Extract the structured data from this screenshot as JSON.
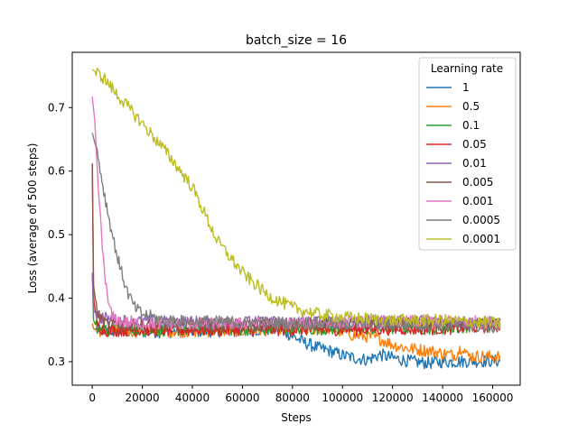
{
  "chart_data": {
    "type": "line",
    "title": "batch_size = 16",
    "xlabel": "Steps",
    "ylabel": "Loss (average of 500 steps)",
    "xlim": [
      -8000,
      171000
    ],
    "ylim": [
      0.263,
      0.787
    ],
    "xticks": [
      0,
      20000,
      40000,
      60000,
      80000,
      100000,
      120000,
      140000,
      160000
    ],
    "yticks": [
      0.3,
      0.4,
      0.5,
      0.6,
      0.7
    ],
    "xtick_labels": [
      "0",
      "20000",
      "40000",
      "60000",
      "80000",
      "100000",
      "120000",
      "140000",
      "160000"
    ],
    "ytick_labels": [
      "0.3",
      "0.4",
      "0.5",
      "0.6",
      "0.7"
    ],
    "grid": false,
    "legend": {
      "title": "Learning rate",
      "placement": "top-right"
    },
    "series": [
      {
        "name": "1",
        "color": "#1f77b4",
        "points": [
          [
            0,
            0.36
          ],
          [
            500,
            0.352
          ],
          [
            2000,
            0.349
          ],
          [
            10000,
            0.348
          ],
          [
            20000,
            0.347
          ],
          [
            40000,
            0.348
          ],
          [
            60000,
            0.349
          ],
          [
            75000,
            0.352
          ],
          [
            80000,
            0.34
          ],
          [
            85000,
            0.33
          ],
          [
            90000,
            0.322
          ],
          [
            95000,
            0.317
          ],
          [
            100000,
            0.31
          ],
          [
            105000,
            0.306
          ],
          [
            110000,
            0.303
          ],
          [
            115000,
            0.311
          ],
          [
            120000,
            0.306
          ],
          [
            125000,
            0.302
          ],
          [
            130000,
            0.299
          ],
          [
            135000,
            0.298
          ],
          [
            140000,
            0.3
          ],
          [
            145000,
            0.3
          ],
          [
            150000,
            0.301
          ],
          [
            163000,
            0.301
          ]
        ]
      },
      {
        "name": "0.5",
        "color": "#ff7f0e",
        "points": [
          [
            0,
            0.36
          ],
          [
            500,
            0.352
          ],
          [
            2000,
            0.349
          ],
          [
            10000,
            0.349
          ],
          [
            20000,
            0.348
          ],
          [
            40000,
            0.348
          ],
          [
            60000,
            0.349
          ],
          [
            80000,
            0.352
          ],
          [
            95000,
            0.352
          ],
          [
            100000,
            0.347
          ],
          [
            105000,
            0.341
          ],
          [
            110000,
            0.34
          ],
          [
            115000,
            0.336
          ],
          [
            120000,
            0.327
          ],
          [
            125000,
            0.322
          ],
          [
            130000,
            0.319
          ],
          [
            135000,
            0.317
          ],
          [
            140000,
            0.313
          ],
          [
            145000,
            0.31
          ],
          [
            148000,
            0.325
          ],
          [
            150000,
            0.309
          ],
          [
            163000,
            0.308
          ]
        ]
      },
      {
        "name": "0.1",
        "color": "#2ca02c",
        "points": [
          [
            0,
            0.44
          ],
          [
            500,
            0.365
          ],
          [
            2000,
            0.352
          ],
          [
            5000,
            0.35
          ],
          [
            20000,
            0.35
          ],
          [
            60000,
            0.351
          ],
          [
            100000,
            0.352
          ],
          [
            140000,
            0.353
          ],
          [
            163000,
            0.36
          ]
        ]
      },
      {
        "name": "0.05",
        "color": "#d62728",
        "points": [
          [
            0,
            0.612
          ],
          [
            500,
            0.4
          ],
          [
            2000,
            0.358
          ],
          [
            5000,
            0.349
          ],
          [
            20000,
            0.35
          ],
          [
            60000,
            0.35
          ],
          [
            100000,
            0.351
          ],
          [
            140000,
            0.352
          ],
          [
            163000,
            0.356
          ]
        ]
      },
      {
        "name": "0.01",
        "color": "#9467bd",
        "points": [
          [
            0,
            0.44
          ],
          [
            500,
            0.38
          ],
          [
            3000,
            0.37
          ],
          [
            10000,
            0.365
          ],
          [
            30000,
            0.363
          ],
          [
            60000,
            0.362
          ],
          [
            100000,
            0.363
          ],
          [
            140000,
            0.364
          ],
          [
            163000,
            0.36
          ]
        ]
      },
      {
        "name": "0.005",
        "color": "#8c564b",
        "points": [
          [
            0,
            0.612
          ],
          [
            500,
            0.42
          ],
          [
            2000,
            0.375
          ],
          [
            5000,
            0.36
          ],
          [
            20000,
            0.357
          ],
          [
            60000,
            0.358
          ],
          [
            100000,
            0.36
          ],
          [
            140000,
            0.36
          ],
          [
            163000,
            0.358
          ]
        ]
      },
      {
        "name": "0.001",
        "color": "#e377c2",
        "points": [
          [
            0,
            0.717
          ],
          [
            1000,
            0.68
          ],
          [
            2000,
            0.6
          ],
          [
            4000,
            0.48
          ],
          [
            6000,
            0.4
          ],
          [
            8000,
            0.37
          ],
          [
            12000,
            0.362
          ],
          [
            20000,
            0.36
          ],
          [
            60000,
            0.36
          ],
          [
            100000,
            0.362
          ],
          [
            140000,
            0.364
          ],
          [
            163000,
            0.362
          ]
        ]
      },
      {
        "name": "0.0005",
        "color": "#7f7f7f",
        "points": [
          [
            0,
            0.66
          ],
          [
            2000,
            0.63
          ],
          [
            5000,
            0.56
          ],
          [
            8000,
            0.5
          ],
          [
            11000,
            0.45
          ],
          [
            14000,
            0.41
          ],
          [
            17000,
            0.385
          ],
          [
            20000,
            0.375
          ],
          [
            30000,
            0.364
          ],
          [
            60000,
            0.362
          ],
          [
            100000,
            0.36
          ],
          [
            140000,
            0.358
          ],
          [
            163000,
            0.354
          ]
        ]
      },
      {
        "name": "0.0001",
        "color": "#bcbd22",
        "points": [
          [
            0,
            0.76
          ],
          [
            5000,
            0.745
          ],
          [
            10000,
            0.72
          ],
          [
            20000,
            0.675
          ],
          [
            30000,
            0.628
          ],
          [
            40000,
            0.575
          ],
          [
            50000,
            0.49
          ],
          [
            60000,
            0.44
          ],
          [
            70000,
            0.405
          ],
          [
            80000,
            0.385
          ],
          [
            90000,
            0.375
          ],
          [
            100000,
            0.37
          ],
          [
            120000,
            0.365
          ],
          [
            140000,
            0.365
          ],
          [
            163000,
            0.36
          ]
        ]
      }
    ]
  }
}
